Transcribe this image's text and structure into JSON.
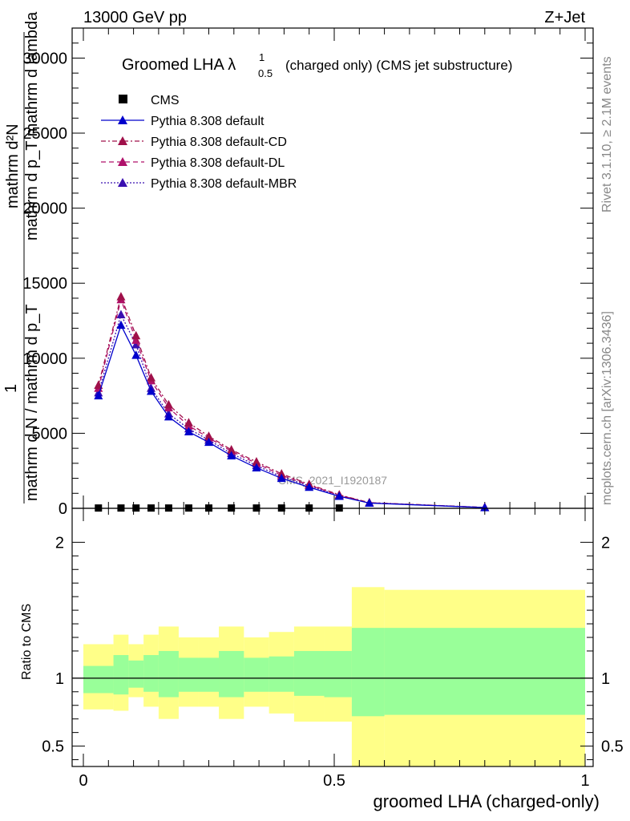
{
  "header": {
    "energy_label": "13000 GeV pp",
    "process_label": "Z+Jet"
  },
  "side_text": {
    "rivet": "Rivet 3.1.10, ≥ 2.1M events",
    "mcplots": "mcplots.cern.ch [arXiv:1306.3436]"
  },
  "watermark": "CMS_2021_I1920187",
  "chart_data": [
    {
      "type": "line",
      "title": "Groomed LHA λ",
      "title_superscript": "1",
      "title_subscript": "0.5",
      "title_suffix": "(charged only) (CMS jet substructure)",
      "ylabel_lines": [
        "mathrm d²N",
        "mathrm d p_T mathrm d lambda",
        "1 / mathrm d N / mathrm d p_T",
        "mathrm d N / mathrm d p_T"
      ],
      "ylabel_parts": {
        "top": "mathrm d²N",
        "mid": "mathrm d p_T mathrm d lambda",
        "one": "1",
        "bot": "mathrm d N / mathrm d p_T"
      },
      "xlim": [
        0,
        1
      ],
      "ylim": [
        0,
        32000
      ],
      "ytick_labels": [
        "0",
        "5000",
        "10000",
        "15000",
        "20000",
        "25000",
        "30000"
      ],
      "ytick_values": [
        0,
        5000,
        10000,
        15000,
        20000,
        25000,
        30000
      ],
      "x": [
        0.03,
        0.075,
        0.105,
        0.135,
        0.17,
        0.21,
        0.25,
        0.295,
        0.345,
        0.395,
        0.45,
        0.51,
        0.57,
        0.8
      ],
      "series": [
        {
          "name": "CMS",
          "marker": "square",
          "color": "#000000",
          "dash": "",
          "values": [
            20,
            20,
            20,
            20,
            20,
            20,
            20,
            20,
            20,
            20,
            20,
            20,
            null,
            null
          ]
        },
        {
          "name": "Pythia 8.308 default",
          "marker": "triangle",
          "color": "#0000cc",
          "dash": "",
          "values": [
            7500,
            12200,
            10200,
            7800,
            6100,
            5100,
            4400,
            3500,
            2700,
            2000,
            1400,
            800,
            350,
            50
          ]
        },
        {
          "name": "Pythia 8.308 default-CD",
          "marker": "triangle",
          "color": "#a0104a",
          "dash": "6,3,2,3",
          "values": [
            8200,
            14100,
            11500,
            8700,
            6900,
            5700,
            4800,
            3900,
            3100,
            2300,
            1600,
            900,
            380,
            60
          ]
        },
        {
          "name": "Pythia 8.308 default-DL",
          "marker": "triangle",
          "color": "#b0106a",
          "dash": "6,4",
          "values": [
            8000,
            13900,
            11200,
            8500,
            6700,
            5500,
            4700,
            3800,
            3000,
            2200,
            1550,
            870,
            370,
            55
          ]
        },
        {
          "name": "Pythia 8.308 default-MBR",
          "marker": "triangle",
          "color": "#3a10b0",
          "dash": "2,2",
          "values": [
            7700,
            12900,
            10900,
            8000,
            6300,
            5300,
            4550,
            3650,
            2850,
            2100,
            1500,
            840,
            360,
            52
          ]
        }
      ]
    },
    {
      "type": "area",
      "ylabel": "Ratio to CMS",
      "xlabel": "groomed LHA (charged-only)",
      "xlim": [
        0,
        1
      ],
      "ylim": [
        0.35,
        2.25
      ],
      "ytick_labels": [
        "0.5",
        "1",
        "2"
      ],
      "ytick_values": [
        0.5,
        1,
        2
      ],
      "xtick_labels": [
        "0",
        "0.5",
        "1"
      ],
      "xtick_values": [
        0,
        0.5,
        1
      ],
      "bins": [
        0,
        0.06,
        0.09,
        0.12,
        0.15,
        0.19,
        0.23,
        0.27,
        0.32,
        0.37,
        0.42,
        0.48,
        0.535,
        0.6,
        1.0
      ],
      "band_stat": {
        "color": "#99ff99",
        "lo": [
          0.89,
          0.88,
          0.93,
          0.9,
          0.86,
          0.9,
          0.9,
          0.86,
          0.9,
          0.9,
          0.87,
          0.86,
          0.72,
          0.73
        ],
        "hi": [
          1.09,
          1.17,
          1.13,
          1.17,
          1.2,
          1.15,
          1.15,
          1.2,
          1.15,
          1.16,
          1.2,
          1.2,
          1.37,
          1.37
        ]
      },
      "band_total": {
        "color": "#ffff88",
        "lo": [
          0.77,
          0.76,
          0.86,
          0.79,
          0.7,
          0.79,
          0.79,
          0.7,
          0.79,
          0.74,
          0.68,
          0.68,
          0.23,
          0.23
        ],
        "hi": [
          1.25,
          1.32,
          1.25,
          1.32,
          1.38,
          1.3,
          1.3,
          1.38,
          1.3,
          1.34,
          1.38,
          1.38,
          1.67,
          1.65
        ]
      },
      "reference_line": 1
    }
  ]
}
